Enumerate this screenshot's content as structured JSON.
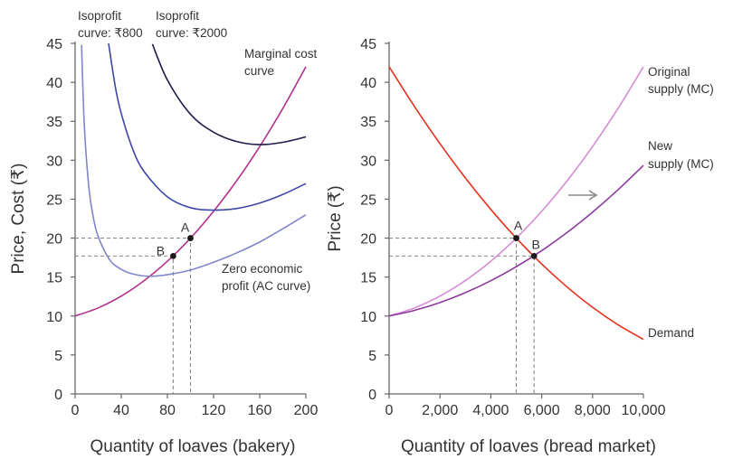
{
  "chart_data": [
    {
      "type": "line",
      "xlabel": "Quantity of loaves (bakery)",
      "ylabel": "Price, Cost (₹)",
      "xlim": [
        0,
        200
      ],
      "ylim": [
        0,
        45
      ],
      "xticks": [
        "0",
        "40",
        "80",
        "120",
        "160",
        "200"
      ],
      "xtick_values": [
        0,
        40,
        80,
        120,
        160,
        200
      ],
      "yticks": [
        "0",
        "5",
        "10",
        "15",
        "20",
        "25",
        "30",
        "35",
        "40",
        "45"
      ],
      "ytick_values": [
        0,
        5,
        10,
        15,
        20,
        25,
        30,
        35,
        40,
        45
      ],
      "grid": false,
      "series": [
        {
          "name": "Marginal cost curve",
          "color": "#b4308e",
          "x": [
            0,
            20,
            40,
            60,
            80,
            100,
            120,
            140,
            160,
            180,
            200
          ],
          "y": [
            10,
            11.04,
            12.56,
            14.56,
            17.04,
            20,
            23.44,
            27.36,
            31.76,
            36.64,
            42
          ]
        },
        {
          "name": "Zero economic profit (AC curve)",
          "color": "#7f86cc",
          "x": [
            5.6,
            8,
            12,
            16,
            20,
            30,
            40,
            50,
            65,
            80,
            100,
            120,
            140,
            160,
            180,
            200
          ],
          "y": [
            44.8,
            34.4,
            26.4,
            22.5,
            20.2,
            17.2,
            16.0,
            15.4,
            15.1,
            15.3,
            15.9,
            16.9,
            18.1,
            19.5,
            21.2,
            23.0
          ]
        },
        {
          "name": "Isoprofit curve: ₹800",
          "color": "#3d47a6",
          "x": [
            29,
            35,
            40,
            50,
            60,
            80,
            100,
            120,
            140,
            160,
            180,
            200
          ],
          "y": [
            45,
            39.3,
            36.0,
            31.4,
            28.5,
            25.3,
            23.9,
            23.6,
            23.8,
            24.5,
            25.6,
            27.0
          ]
        },
        {
          "name": "Isoprofit curve: ₹2000",
          "color": "#1c1d4a",
          "x": [
            67,
            80,
            100,
            120,
            140,
            160,
            180,
            200
          ],
          "y": [
            44.9,
            40.3,
            35.9,
            33.6,
            32.4,
            32.0,
            32.3,
            33.0
          ]
        }
      ],
      "points": [
        {
          "label": "A",
          "x": 100,
          "y": 20
        },
        {
          "label": "B",
          "x": 85,
          "y": 17.7
        }
      ],
      "annotations": {
        "iso800_line1": "Isoprofit",
        "iso800_line2": "curve: ₹800",
        "iso2000_line1": "Isoprofit",
        "iso2000_line2": "curve:  ₹2000",
        "mc_line1": "Marginal cost",
        "mc_line2": "curve",
        "ac_line1": "Zero economic",
        "ac_line2": "profit (AC curve)"
      }
    },
    {
      "type": "line",
      "xlabel": "Quantity of loaves (bread market)",
      "ylabel": "Price (₹)",
      "xlim": [
        0,
        10000
      ],
      "ylim": [
        0,
        45
      ],
      "xticks": [
        "0",
        "2,000",
        "4,000",
        "6,000",
        "8,000",
        "10,000"
      ],
      "xtick_values": [
        0,
        2000,
        4000,
        6000,
        8000,
        10000
      ],
      "yticks": [
        "0",
        "5",
        "10",
        "15",
        "20",
        "25",
        "30",
        "35",
        "40",
        "45"
      ],
      "ytick_values": [
        0,
        5,
        10,
        15,
        20,
        25,
        30,
        35,
        40,
        45
      ],
      "grid": false,
      "series": [
        {
          "name": "Demand",
          "color": "#e5321c",
          "x": [
            0,
            1000,
            2000,
            3000,
            4000,
            5000,
            6000,
            7000,
            8000,
            9000,
            10000
          ],
          "y": [
            42,
            36.88,
            32.12,
            27.72,
            23.68,
            20.0,
            16.68,
            13.72,
            11.12,
            8.88,
            7.0
          ]
        },
        {
          "name": "Original supply (MC)",
          "color": "#d68bd6",
          "x": [
            0,
            1000,
            2000,
            3000,
            4000,
            5000,
            6000,
            7000,
            8000,
            9000,
            10000
          ],
          "y": [
            10,
            11.04,
            12.56,
            14.56,
            17.04,
            20,
            23.44,
            27.36,
            31.76,
            36.64,
            42
          ]
        },
        {
          "name": "New supply (MC)",
          "color": "#8b3a9c",
          "x": [
            0,
            1000,
            2000,
            3000,
            4000,
            5000,
            6000,
            7000,
            8000,
            9000,
            10000
          ],
          "y": [
            10,
            10.73,
            11.73,
            13.0,
            14.53,
            16.33,
            18.39,
            20.73,
            23.33,
            26.2,
            29.34
          ]
        }
      ],
      "points": [
        {
          "label": "A",
          "x": 5000,
          "y": 20
        },
        {
          "label": "B",
          "x": 5700,
          "y": 17.7
        }
      ],
      "shift_arrow": "right",
      "annotations": {
        "orig_line1": "Original",
        "orig_line2": "supply (MC)",
        "new_line1": "New",
        "new_line2": "supply (MC)",
        "demand": "Demand"
      }
    }
  ]
}
